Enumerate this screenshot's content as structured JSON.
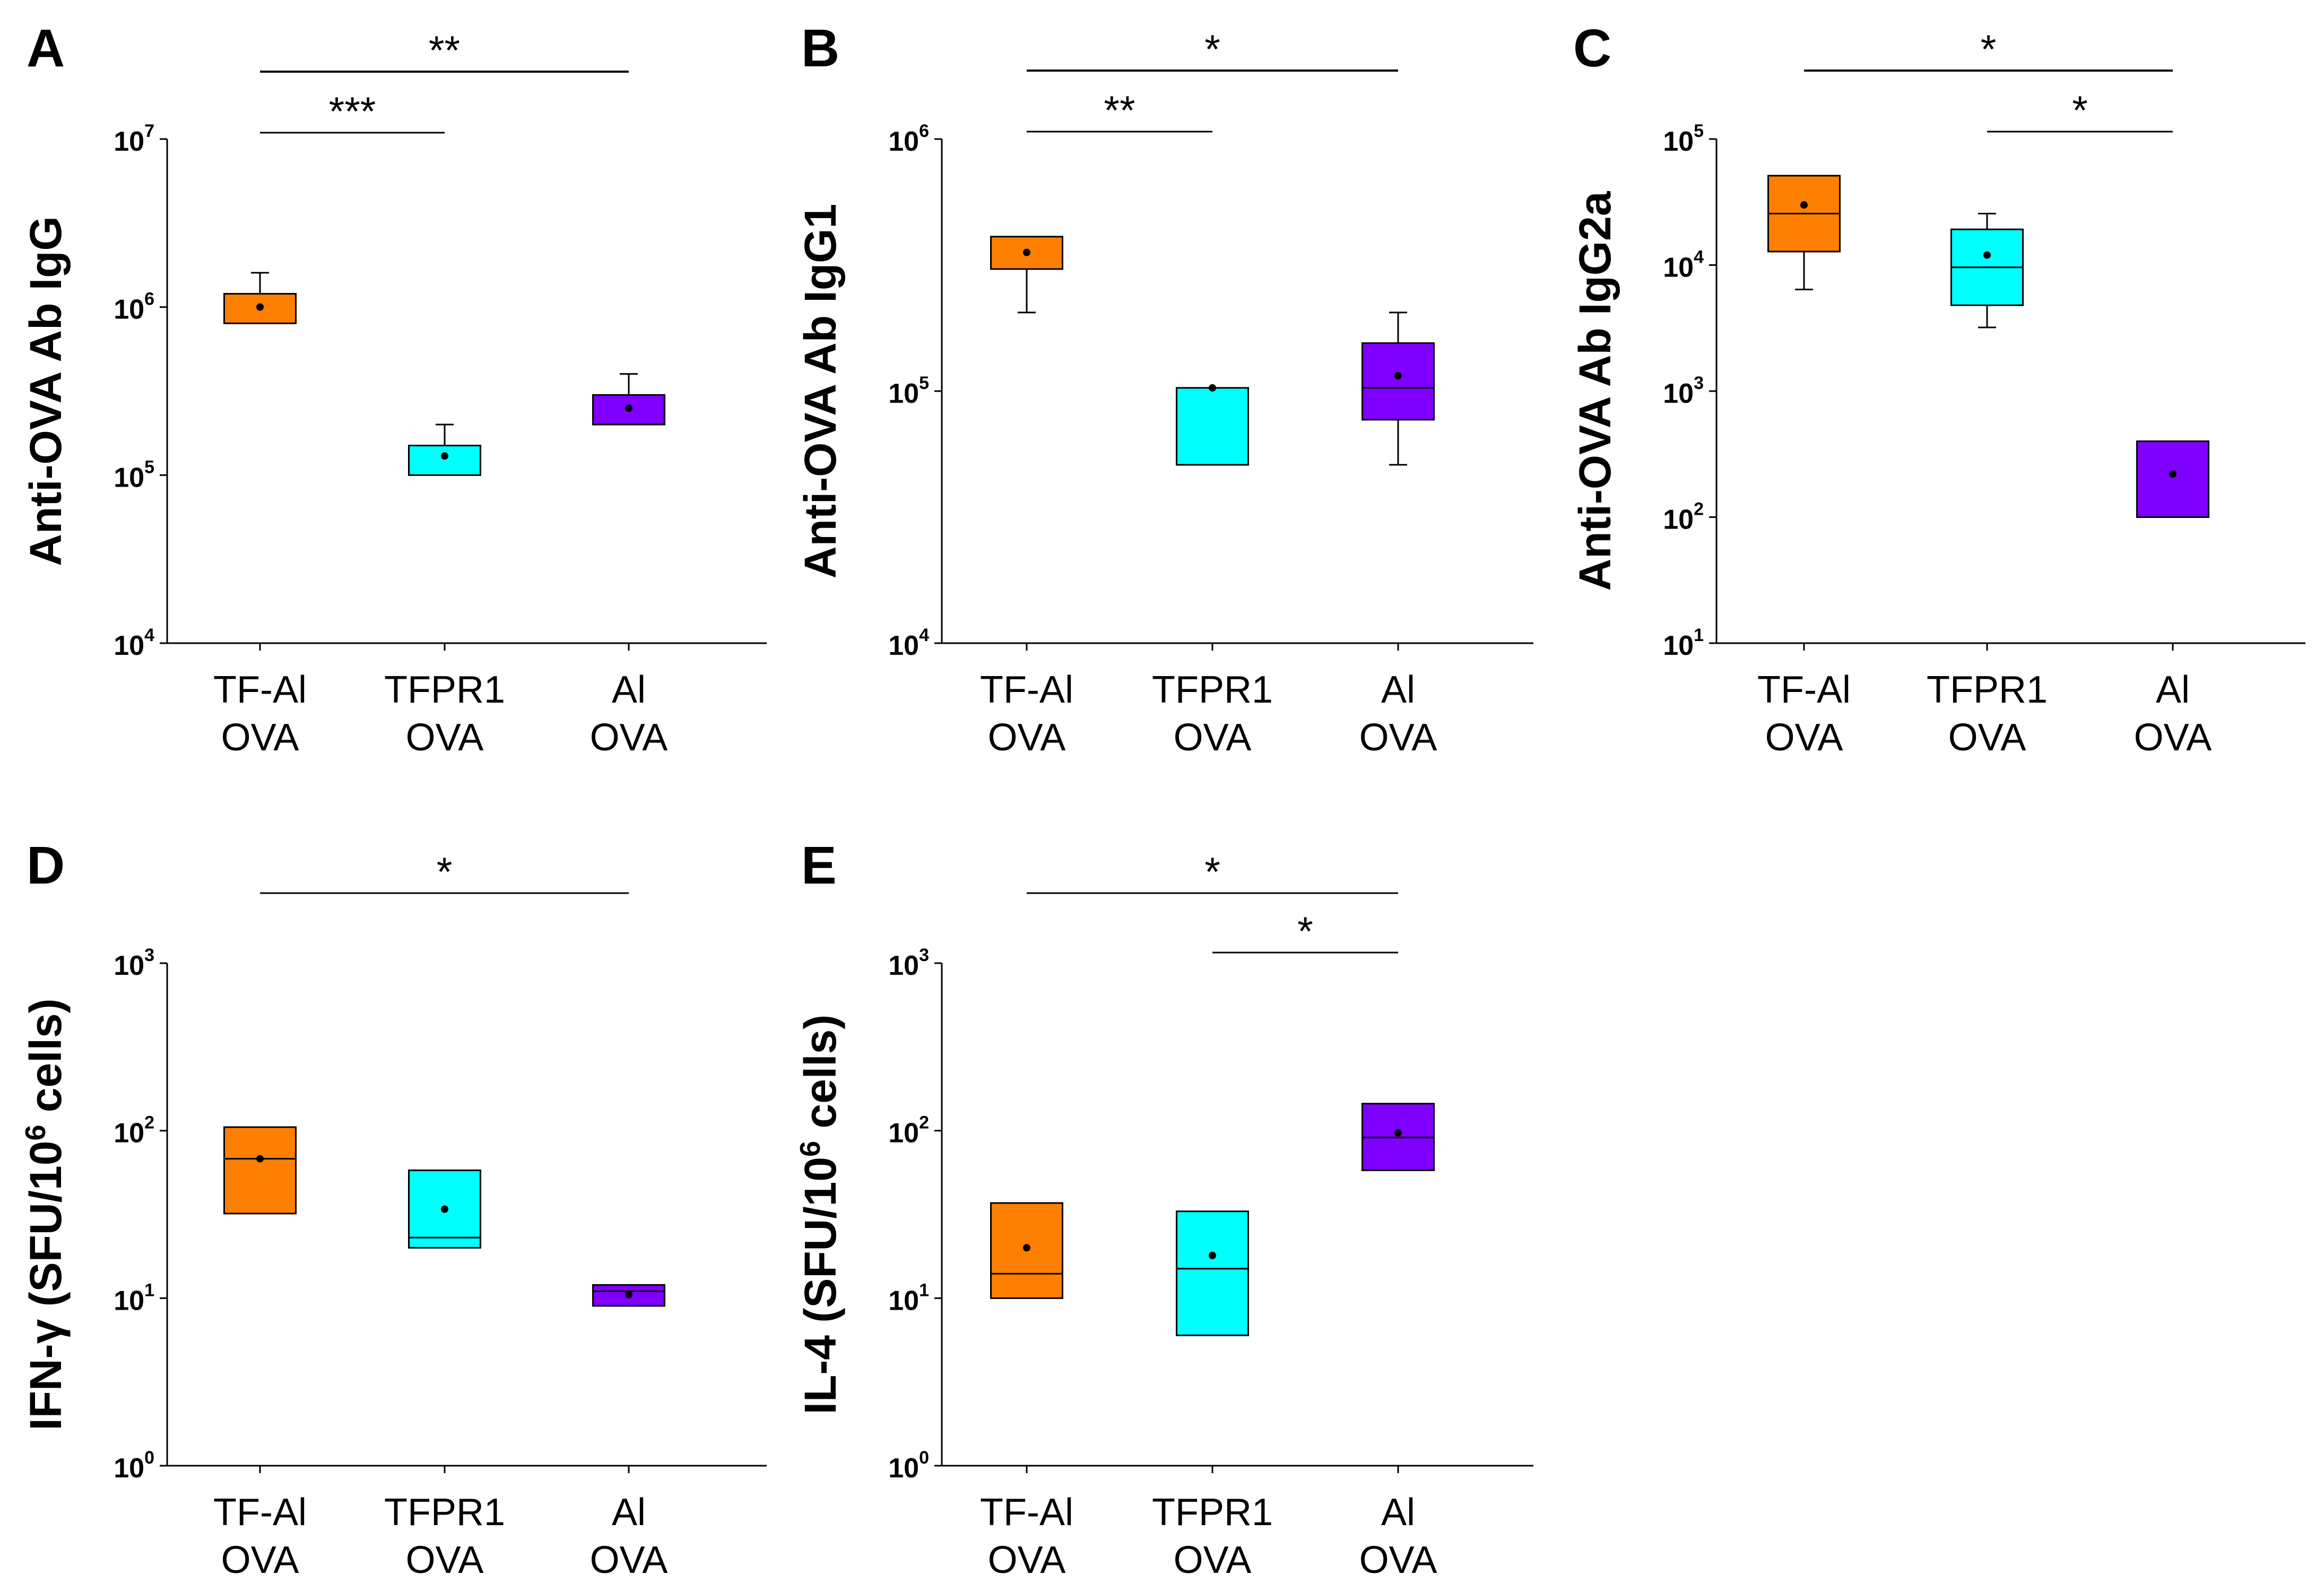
{
  "figure": {
    "colors": {
      "TF-Al OVA": "#ff7f00",
      "TFPR1 OVA": "#00ffff",
      "Al OVA": "#8000ff",
      "axis": "#000000"
    }
  },
  "chart_data": [
    {
      "type": "box",
      "panel": "A",
      "ylabel": "Anti-OVA Ab IgG",
      "yscale": "log",
      "ylim": [
        10000,
        10000000
      ],
      "yticks": [
        {
          "base": "10",
          "exp": "4"
        },
        {
          "base": "10",
          "exp": "5"
        },
        {
          "base": "10",
          "exp": "6"
        },
        {
          "base": "10",
          "exp": "7"
        }
      ],
      "categories": [
        {
          "line1": "TF-Al",
          "line2": "OVA"
        },
        {
          "line1": "TFPR1",
          "line2": "OVA"
        },
        {
          "line1": "Al",
          "line2": "OVA"
        }
      ],
      "boxes": [
        {
          "group": "TF-Al OVA",
          "min": 800000,
          "q1": 800000,
          "median": null,
          "q3": 1200000,
          "max": 1600000,
          "mean": 1000000
        },
        {
          "group": "TFPR1 OVA",
          "min": 100000,
          "q1": 100000,
          "median": null,
          "q3": 150000,
          "max": 200000,
          "mean": 130000
        },
        {
          "group": "Al OVA",
          "min": 200000,
          "q1": 200000,
          "median": null,
          "q3": 300000,
          "max": 400000,
          "mean": 250000
        }
      ],
      "significance": [
        {
          "from": 0,
          "to": 2,
          "label": "**",
          "row": 1
        },
        {
          "from": 0,
          "to": 1,
          "label": "***",
          "row": 2
        }
      ]
    },
    {
      "type": "box",
      "panel": "B",
      "ylabel": "Anti-OVA Ab IgG1",
      "yscale": "log",
      "ylim": [
        10000,
        1000000
      ],
      "yticks": [
        {
          "base": "10",
          "exp": "4"
        },
        {
          "base": "10",
          "exp": "5"
        },
        {
          "base": "10",
          "exp": "6"
        }
      ],
      "categories": [
        {
          "line1": "TF-Al",
          "line2": "OVA"
        },
        {
          "line1": "TFPR1",
          "line2": "OVA"
        },
        {
          "line1": "Al",
          "line2": "OVA"
        }
      ],
      "boxes": [
        {
          "group": "TF-Al OVA",
          "min": 205000,
          "q1": 305000,
          "median": null,
          "q3": 410000,
          "max": 410000,
          "mean": 355000
        },
        {
          "group": "TFPR1 OVA",
          "min": 51000,
          "q1": 51000,
          "median": null,
          "q3": 103000,
          "max": 103000,
          "mean": 103000
        },
        {
          "group": "Al OVA",
          "min": 51000,
          "q1": 77000,
          "median": 103000,
          "q3": 155000,
          "max": 205000,
          "mean": 115000
        }
      ],
      "significance": [
        {
          "from": 0,
          "to": 2,
          "label": "*",
          "row": 1
        },
        {
          "from": 0,
          "to": 1,
          "label": "**",
          "row": 2
        }
      ]
    },
    {
      "type": "box",
      "panel": "C",
      "ylabel": "Anti-OVA Ab IgG2a",
      "yscale": "log",
      "ylim": [
        10,
        100000
      ],
      "yticks": [
        {
          "base": "10",
          "exp": "1"
        },
        {
          "base": "10",
          "exp": "2"
        },
        {
          "base": "10",
          "exp": "3"
        },
        {
          "base": "10",
          "exp": "4"
        },
        {
          "base": "10",
          "exp": "5"
        }
      ],
      "categories": [
        {
          "line1": "TF-Al",
          "line2": "OVA"
        },
        {
          "line1": "TFPR1",
          "line2": "OVA"
        },
        {
          "line1": "Al",
          "line2": "OVA"
        }
      ],
      "boxes": [
        {
          "group": "TF-Al OVA",
          "min": 6400,
          "q1": 12800,
          "median": 25600,
          "q3": 51200,
          "max": 51200,
          "mean": 30000
        },
        {
          "group": "TFPR1 OVA",
          "min": 3200,
          "q1": 4800,
          "median": 9600,
          "q3": 19200,
          "max": 25600,
          "mean": 12000
        },
        {
          "group": "Al OVA",
          "min": 100,
          "q1": 100,
          "median": null,
          "q3": 400,
          "max": 400,
          "mean": 220
        }
      ],
      "significance": [
        {
          "from": 0,
          "to": 2,
          "label": "*",
          "row": 1
        },
        {
          "from": 1,
          "to": 2,
          "label": "*",
          "row": 2
        }
      ]
    },
    {
      "type": "box",
      "panel": "D",
      "ylabel": "IFN-γ  (SFU/10",
      "ylabel_sup": "6",
      "ylabel_tail": " cells)",
      "yscale": "log",
      "ylim": [
        1,
        1000
      ],
      "yticks": [
        {
          "base": "10",
          "exp": "0"
        },
        {
          "base": "10",
          "exp": "1"
        },
        {
          "base": "10",
          "exp": "2"
        },
        {
          "base": "10",
          "exp": "3"
        }
      ],
      "categories": [
        {
          "line1": "TF-Al",
          "line2": "OVA"
        },
        {
          "line1": "TFPR1",
          "line2": "OVA"
        },
        {
          "line1": "Al",
          "line2": "OVA"
        }
      ],
      "boxes": [
        {
          "group": "TF-Al OVA",
          "min": 32,
          "q1": 32,
          "median": 68,
          "q3": 105,
          "max": 105,
          "mean": 68
        },
        {
          "group": "TFPR1 OVA",
          "min": 20,
          "q1": 20,
          "median": 23,
          "q3": 58,
          "max": 58,
          "mean": 34
        },
        {
          "group": "Al OVA",
          "min": 9,
          "q1": 9,
          "median": 11,
          "q3": 12,
          "max": 12,
          "mean": 10.5
        }
      ],
      "significance": [
        {
          "from": 0,
          "to": 2,
          "label": "*",
          "row": 1
        }
      ]
    },
    {
      "type": "box",
      "panel": "E",
      "ylabel": "IL-4  (SFU/10",
      "ylabel_sup": "6",
      "ylabel_tail": " cells)",
      "yscale": "log",
      "ylim": [
        1,
        1000
      ],
      "yticks": [
        {
          "base": "10",
          "exp": "0"
        },
        {
          "base": "10",
          "exp": "1"
        },
        {
          "base": "10",
          "exp": "2"
        },
        {
          "base": "10",
          "exp": "3"
        }
      ],
      "categories": [
        {
          "line1": "TF-Al",
          "line2": "OVA"
        },
        {
          "line1": "TFPR1",
          "line2": "OVA"
        },
        {
          "line1": "Al",
          "line2": "OVA"
        }
      ],
      "boxes": [
        {
          "group": "TF-Al OVA",
          "min": 10,
          "q1": 10,
          "median": 14,
          "q3": 37,
          "max": 37,
          "mean": 20
        },
        {
          "group": "TFPR1 OVA",
          "min": 6,
          "q1": 6,
          "median": 15,
          "q3": 33,
          "max": 33,
          "mean": 18
        },
        {
          "group": "Al OVA",
          "min": 58,
          "q1": 58,
          "median": 91,
          "q3": 145,
          "max": 145,
          "mean": 97
        }
      ],
      "significance": [
        {
          "from": 0,
          "to": 2,
          "label": "*",
          "row": 1
        },
        {
          "from": 1,
          "to": 2,
          "label": "*",
          "row": 2
        }
      ]
    }
  ]
}
